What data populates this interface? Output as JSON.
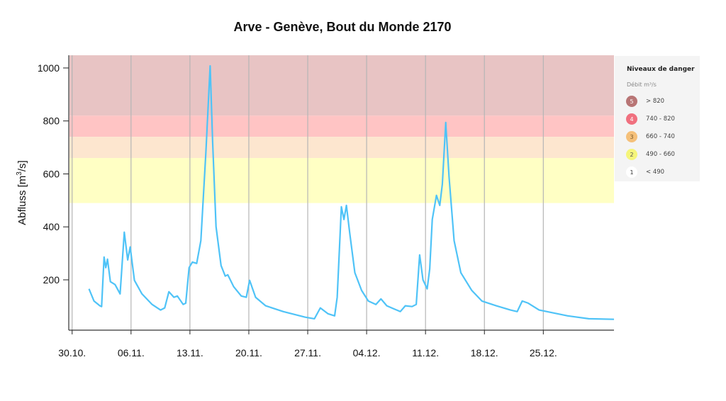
{
  "chart_data": {
    "type": "line",
    "title": "Arve - Genève, Bout du Monde 2170",
    "ylabel": "Abfluss [m³/s]",
    "ylabel_base": "Abfluss [m",
    "ylabel_sup": "3",
    "ylabel_end": "/s]",
    "xlabel": "",
    "xlim_days": [
      -0.4,
      64.4
    ],
    "ylim": [
      10,
      1048
    ],
    "yticks": [
      200,
      400,
      600,
      800,
      1000
    ],
    "xticks": [
      {
        "day": 0,
        "label": "30.10."
      },
      {
        "day": 7,
        "label": "06.11."
      },
      {
        "day": 14,
        "label": "13.11."
      },
      {
        "day": 21,
        "label": "20.11."
      },
      {
        "day": 28,
        "label": "27.11."
      },
      {
        "day": 35,
        "label": "04.12."
      },
      {
        "day": 42,
        "label": "11.12."
      },
      {
        "day": 49,
        "label": "18.12."
      },
      {
        "day": 56,
        "label": "25.12."
      }
    ],
    "grid": "vertical",
    "series": [
      {
        "name": "Abfluss",
        "color": "#4fc3f7",
        "x": [
          2.0,
          2.6,
          3.3,
          3.5,
          3.8,
          4.0,
          4.2,
          4.55,
          5.1,
          5.7,
          6.2,
          6.6,
          6.9,
          7.4,
          8.3,
          9.5,
          10.5,
          11.0,
          11.5,
          12.1,
          12.5,
          13.2,
          13.5,
          13.9,
          14.3,
          14.8,
          15.3,
          15.9,
          16.4,
          16.7,
          17.1,
          17.7,
          18.2,
          18.5,
          19.2,
          20.1,
          20.7,
          21.1,
          21.8,
          23.0,
          25.1,
          27.7,
          28.8,
          29.5,
          30.4,
          31.2,
          31.5,
          32.0,
          32.3,
          32.6,
          33.0,
          33.6,
          34.4,
          35.2,
          36.1,
          36.7,
          37.4,
          38.2,
          39.0,
          39.6,
          40.4,
          40.9,
          41.3,
          41.7,
          42.2,
          42.5,
          42.8,
          43.3,
          43.7,
          44.0,
          44.4,
          44.8,
          45.4,
          46.2,
          47.5,
          48.7,
          50.4,
          52.1,
          52.9,
          53.5,
          54.2,
          55.5,
          57.2,
          58.9,
          61.4,
          64.4
        ],
        "y": [
          166,
          120,
          102,
          99,
          286,
          246,
          278,
          193,
          182,
          147,
          380,
          275,
          324,
          198,
          147,
          107,
          86,
          94,
          155,
          134,
          139,
          107,
          112,
          246,
          267,
          262,
          348,
          682,
          1008,
          722,
          401,
          254,
          214,
          219,
          174,
          139,
          134,
          198,
          134,
          102,
          80,
          59,
          53,
          94,
          72,
          64,
          134,
          476,
          428,
          481,
          374,
          227,
          160,
          120,
          107,
          128,
          102,
          91,
          80,
          102,
          99,
          107,
          294,
          200,
          166,
          241,
          428,
          519,
          481,
          561,
          794,
          588,
          348,
          227,
          160,
          120,
          102,
          86,
          80,
          120,
          112,
          86,
          75,
          64,
          53,
          51
        ]
      }
    ],
    "danger_bands": [
      {
        "level": "5",
        "min": 820,
        "max": 1048,
        "color": "#e8c4c4"
      },
      {
        "level": "4",
        "min": 740,
        "max": 820,
        "color": "#ffc4c4"
      },
      {
        "level": "3",
        "min": 660,
        "max": 740,
        "color": "#fde6cf"
      },
      {
        "level": "2",
        "min": 490,
        "max": 660,
        "color": "#ffffc4"
      }
    ]
  },
  "legend": {
    "title": "Niveaux de danger",
    "subtitle": "Débit m³/s",
    "items": [
      {
        "level": "5",
        "label": "> 820",
        "color": "#b87575",
        "text_color": "#ffffff"
      },
      {
        "level": "4",
        "label": "740 - 820",
        "color": "#f0707f",
        "text_color": "#ffffff"
      },
      {
        "level": "3",
        "label": "660 - 740",
        "color": "#f5c07a",
        "text_color": "#7a5a2a"
      },
      {
        "level": "2",
        "label": "490 - 660",
        "color": "#f5f57a",
        "text_color": "#555555"
      },
      {
        "level": "1",
        "label": "< 490",
        "color": "#ffffff",
        "text_color": "#333333"
      }
    ]
  }
}
